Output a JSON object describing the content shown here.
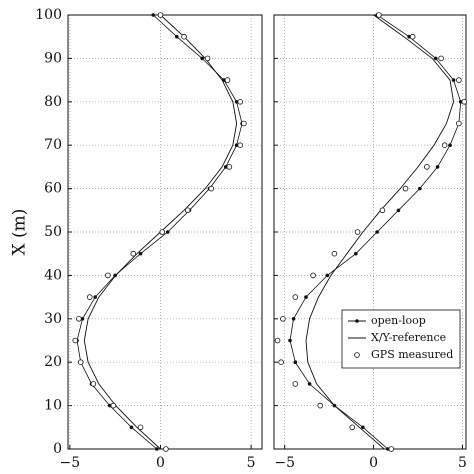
{
  "chart_data": [
    {
      "type": "line",
      "ylabel": "X (m)",
      "xlim": [
        -5.1,
        5.6
      ],
      "ylim": [
        0,
        100
      ],
      "xticks": [
        {
          "value": -5,
          "label": "−5"
        },
        0,
        5
      ],
      "yticks": [
        0,
        10,
        20,
        30,
        40,
        50,
        60,
        70,
        80,
        90,
        100
      ],
      "ytick_labels": true,
      "grid": true,
      "series": [
        {
          "name": "open-loop",
          "color": "#111111",
          "marker": "dot",
          "x": [
            -0.2,
            -1.6,
            -2.8,
            -3.8,
            -4.4,
            -4.6,
            -4.3,
            -3.6,
            -2.5,
            -1.1,
            0.4,
            1.6,
            2.7,
            3.6,
            4.2,
            4.5,
            4.2,
            3.5,
            2.3,
            0.9,
            -0.4
          ],
          "values": [
            0,
            5,
            10,
            15,
            20,
            25,
            30,
            35,
            40,
            45,
            50,
            55,
            60,
            65,
            70,
            75,
            80,
            85,
            90,
            95,
            100
          ]
        },
        {
          "name": "X/Y-reference",
          "color": "#111111",
          "marker": "none",
          "x": [
            0,
            -1.3,
            -2.47,
            -3.4,
            -3.99,
            -4.2,
            -3.99,
            -3.4,
            -2.47,
            -1.3,
            0,
            1.3,
            2.47,
            3.4,
            3.99,
            4.2,
            3.99,
            3.4,
            2.47,
            1.3,
            0
          ],
          "values": [
            0,
            5,
            10,
            15,
            20,
            25,
            30,
            35,
            40,
            45,
            50,
            55,
            60,
            65,
            70,
            75,
            80,
            85,
            90,
            95,
            100
          ]
        },
        {
          "name": "GPS measured",
          "color": "#111111",
          "marker": "circle",
          "x": [
            0.3,
            -1.1,
            -2.6,
            -3.7,
            -4.4,
            -4.7,
            -4.5,
            -3.9,
            -2.9,
            -1.5,
            0.1,
            1.5,
            2.8,
            3.8,
            4.4,
            4.6,
            4.4,
            3.7,
            2.6,
            1.3,
            0
          ],
          "values": [
            0,
            5,
            10,
            15,
            20,
            25,
            30,
            35,
            40,
            45,
            50,
            55,
            60,
            65,
            70,
            75,
            80,
            85,
            90,
            95,
            100
          ]
        }
      ]
    },
    {
      "type": "line",
      "xlim": [
        -5.6,
        5.2
      ],
      "ylim": [
        0,
        100
      ],
      "xticks": [
        {
          "value": -5,
          "label": "−5"
        },
        0,
        5
      ],
      "yticks": [
        0,
        10,
        20,
        30,
        40,
        50,
        60,
        70,
        80,
        90,
        100
      ],
      "ytick_labels": false,
      "grid": true,
      "legend": "lower right",
      "series": [
        {
          "name": "open-loop",
          "color": "#111111",
          "marker": "dot",
          "x": [
            0.8,
            -0.6,
            -2.2,
            -3.6,
            -4.4,
            -4.7,
            -4.5,
            -3.8,
            -2.6,
            -1.0,
            0.2,
            1.4,
            2.6,
            3.6,
            4.3,
            4.8,
            4.9,
            4.5,
            3.5,
            2.0,
            0.2
          ],
          "values": [
            0,
            5,
            10,
            15,
            20,
            25,
            30,
            35,
            40,
            45,
            50,
            55,
            60,
            65,
            70,
            75,
            80,
            85,
            90,
            95,
            100
          ]
        },
        {
          "name": "X/Y-reference",
          "color": "#111111",
          "marker": "none",
          "x": [
            0.6,
            -0.8,
            -2.2,
            -3.2,
            -3.7,
            -3.8,
            -3.6,
            -3.1,
            -2.4,
            -1.5,
            -0.6,
            0.4,
            1.5,
            2.5,
            3.4,
            4.1,
            4.5,
            4.3,
            3.3,
            1.7,
            0
          ],
          "values": [
            0,
            5,
            10,
            15,
            20,
            25,
            30,
            35,
            40,
            45,
            50,
            55,
            60,
            65,
            70,
            75,
            80,
            85,
            90,
            95,
            100
          ]
        },
        {
          "name": "GPS measured",
          "color": "#111111",
          "marker": "circle",
          "x": [
            1.0,
            -1.2,
            -3.0,
            -4.4,
            -5.2,
            -5.4,
            -5.1,
            -4.4,
            -3.4,
            -2.2,
            -0.9,
            0.5,
            1.8,
            3.0,
            4.0,
            4.8,
            5.1,
            4.8,
            3.8,
            2.2,
            0.3
          ],
          "values": [
            0,
            5,
            10,
            15,
            20,
            25,
            30,
            35,
            40,
            45,
            50,
            55,
            60,
            65,
            70,
            75,
            80,
            85,
            90,
            95,
            100
          ]
        }
      ]
    }
  ]
}
